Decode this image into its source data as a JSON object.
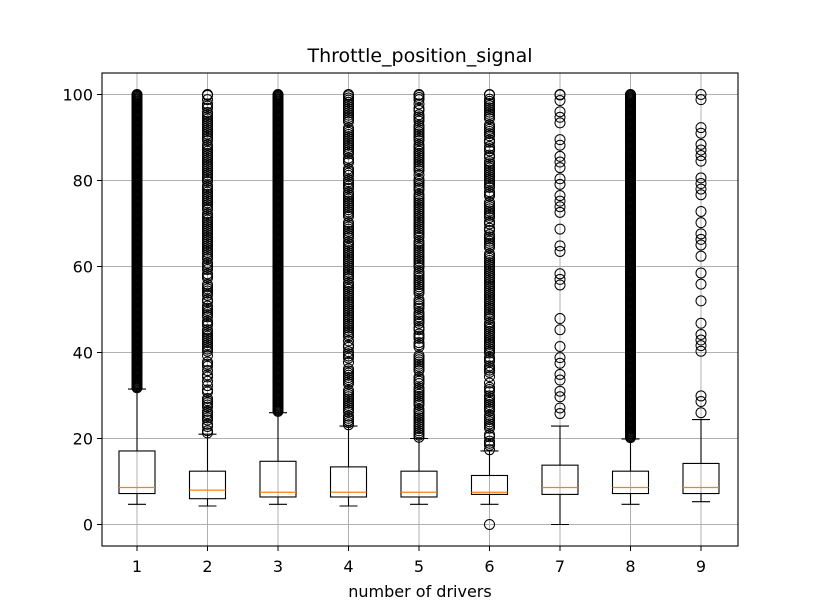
{
  "chart_data": {
    "type": "boxplot",
    "title": "Throttle_position_signal",
    "xlabel": "number of drivers",
    "ylabel": "",
    "ylim": [
      -5,
      105
    ],
    "yticks": [
      0,
      20,
      40,
      60,
      80,
      100
    ],
    "grid": true,
    "categories": [
      "1",
      "2",
      "3",
      "4",
      "5",
      "6",
      "7",
      "8",
      "9"
    ],
    "boxes": [
      {
        "label": "1",
        "whisker_low": 4.7,
        "q1": 7.2,
        "median": 8.6,
        "q3": 17.1,
        "whisker_high": 31.5,
        "outlier_min": 31.8,
        "outlier_max": 100,
        "outlier_density": "dense",
        "low_outliers": []
      },
      {
        "label": "2",
        "whisker_low": 4.3,
        "q1": 6.0,
        "median": 8.0,
        "q3": 12.4,
        "whisker_high": 21.0,
        "outlier_min": 21.3,
        "outlier_max": 100,
        "outlier_density": "medium",
        "low_outliers": []
      },
      {
        "label": "3",
        "whisker_low": 4.7,
        "q1": 6.4,
        "median": 7.5,
        "q3": 14.7,
        "whisker_high": 26.0,
        "outlier_min": 26.3,
        "outlier_max": 100,
        "outlier_density": "dense",
        "low_outliers": []
      },
      {
        "label": "4",
        "whisker_low": 4.3,
        "q1": 6.4,
        "median": 7.5,
        "q3": 13.4,
        "whisker_high": 22.9,
        "outlier_min": 23.2,
        "outlier_max": 100,
        "outlier_density": "medium",
        "low_outliers": []
      },
      {
        "label": "5",
        "whisker_low": 4.7,
        "q1": 6.4,
        "median": 7.5,
        "q3": 12.4,
        "whisker_high": 20.0,
        "outlier_min": 20.3,
        "outlier_max": 100,
        "outlier_density": "medium",
        "low_outliers": []
      },
      {
        "label": "6",
        "whisker_low": 4.7,
        "q1": 7.0,
        "median": 7.5,
        "q3": 11.4,
        "whisker_high": 17.1,
        "outlier_min": 17.4,
        "outlier_max": 100,
        "outlier_density": "medium",
        "low_outliers": [
          0
        ]
      },
      {
        "label": "7",
        "whisker_low": 0,
        "q1": 7.0,
        "median": 8.6,
        "q3": 13.8,
        "whisker_high": 22.9,
        "outlier_min": 23.2,
        "outlier_max": 100,
        "outlier_density": "sparse",
        "low_outliers": []
      },
      {
        "label": "8",
        "whisker_low": 4.7,
        "q1": 7.2,
        "median": 8.6,
        "q3": 12.4,
        "whisker_high": 19.9,
        "outlier_min": 20.2,
        "outlier_max": 100,
        "outlier_density": "dense",
        "low_outliers": []
      },
      {
        "label": "9",
        "whisker_low": 5.3,
        "q1": 7.2,
        "median": 8.6,
        "q3": 14.2,
        "whisker_high": 24.4,
        "outlier_min": 24.7,
        "outlier_max": 100,
        "outlier_density": "sparse",
        "low_outliers": []
      }
    ],
    "colors": {
      "box": "#000000",
      "median": "#ff7f0e",
      "grid": "#b0b0b0",
      "outlier": "#000000"
    }
  }
}
